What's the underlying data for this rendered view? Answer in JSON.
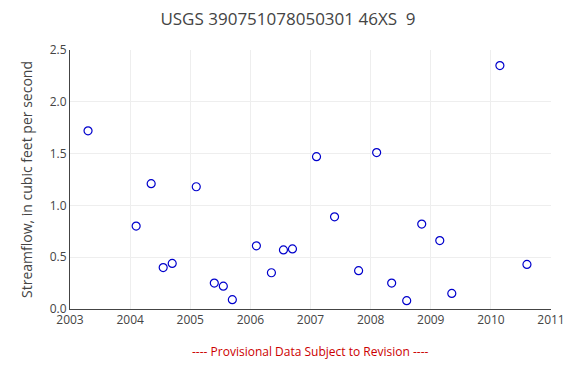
{
  "chart_data": {
    "type": "scatter",
    "title": "USGS 390751078050301 46XS  9",
    "y_label": "Streamflow, in cubic feet per second",
    "x": [
      2003.3,
      2004.1,
      2004.35,
      2004.55,
      2004.7,
      2005.1,
      2005.4,
      2005.55,
      2005.7,
      2006.1,
      2006.35,
      2006.55,
      2006.7,
      2007.1,
      2007.4,
      2007.8,
      2008.1,
      2008.35,
      2008.6,
      2008.85,
      2009.15,
      2009.35,
      2010.15,
      2010.6
    ],
    "values": [
      1.72,
      0.8,
      1.21,
      0.4,
      0.44,
      1.18,
      0.25,
      0.22,
      0.09,
      0.61,
      0.35,
      0.57,
      0.58,
      1.47,
      0.89,
      0.37,
      1.51,
      0.25,
      0.08,
      0.82,
      0.66,
      0.15,
      2.35,
      0.43
    ],
    "color": "#0000cc",
    "marker": "circle-open",
    "xlim": [
      2003,
      2011
    ],
    "xticks": [
      2003,
      2004,
      2005,
      2006,
      2007,
      2008,
      2009,
      2010,
      2011
    ],
    "ylim": [
      0.0,
      2.5
    ],
    "yticks": [
      {
        "value": 0,
        "label": "0.0"
      },
      0.5,
      {
        "value": 1,
        "label": "1.0"
      },
      1.5,
      {
        "value": 2,
        "label": "2.0"
      },
      2.5
    ],
    "grid": true,
    "annotations": [
      {
        "text": "---- Provisional Data Subject to Revision ----",
        "color": "#cc0000"
      }
    ]
  }
}
